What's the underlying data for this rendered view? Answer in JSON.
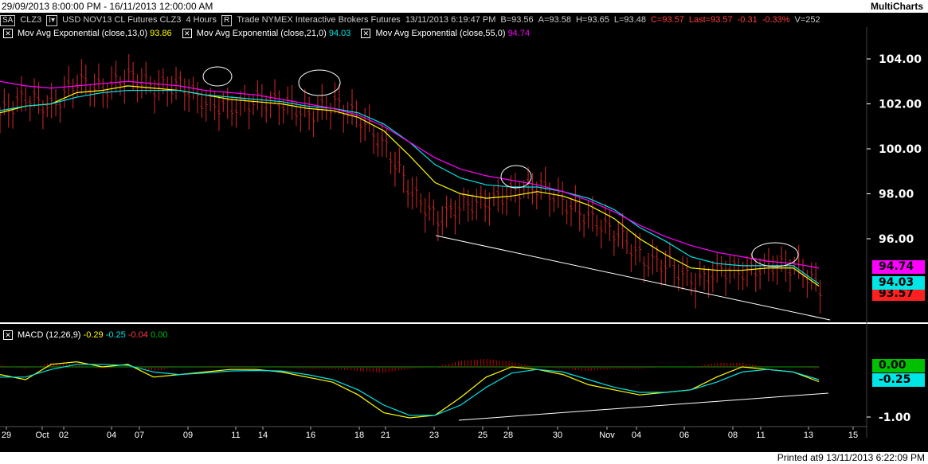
{
  "title": {
    "left": "29/09/2013 8:00:00 PM - 16/11/2013 12:00:00 AM",
    "right": "MultiCharts"
  },
  "info": {
    "mode": "SA",
    "symbol": "CLZ3",
    "desc": "USD NOV13 CL Futures CLZ3",
    "interval": "4 Hours",
    "rbox": "R",
    "source": "Trade  NYMEX  Interactive Brokers  Futures",
    "datetime": "13/11/2013 6:19:47 PM",
    "bid": "B=93.56",
    "ask": "A=93.58",
    "high": "H=93.65",
    "low": "L=93.48",
    "close": "C=93.57",
    "last": "Last=93.57",
    "chg": "-0.31",
    "pct": "-0.33%",
    "vol": "V=252"
  },
  "indicators": [
    {
      "label": "Mov Avg Exponential  (close,13,0)",
      "value": "93.86",
      "color": "#ffff00"
    },
    {
      "label": "Mov Avg Exponential  (close,21,0)",
      "value": "94.03",
      "color": "#00e5e5"
    },
    {
      "label": "Mov Avg Exponential  (close,55,0)",
      "value": "94.74",
      "color": "#ff00ff"
    }
  ],
  "macd_header": {
    "label": "MACD  (12,26,9)",
    "v1": "-0.29",
    "v2": "-0.25",
    "v3": "-0.04",
    "v4": "0.00"
  },
  "badges": {
    "ema55": "94.74",
    "ema21": "94.03",
    "last": "93.57",
    "macd_zero": "0.00",
    "macd_signal": "-0.25"
  },
  "footer": "Printed at9 13/11/2013 6:22:09 PM",
  "chart_data": [
    {
      "type": "line",
      "title": "CLZ3 4 Hours",
      "ylim": [
        93.0,
        105.0
      ],
      "y_ticks": [
        "104.00",
        "102.00",
        "100.00",
        "98.00",
        "96.00"
      ],
      "x_tick_labels": [
        "29",
        "Oct",
        "02",
        "04",
        "07",
        "09",
        "11",
        "14",
        "16",
        "18",
        "21",
        "23",
        "25",
        "28",
        "30",
        "Nov",
        "04",
        "06",
        "08",
        "11",
        "13",
        "15"
      ],
      "grid": false,
      "bars_x": [
        0,
        1.5,
        3,
        4.5,
        6,
        7.5,
        9,
        10.5,
        12,
        13.5,
        15,
        16.5,
        18,
        19.5,
        21,
        22.5,
        24,
        25.5,
        27,
        28.5,
        30,
        31.5,
        33,
        34.5,
        36,
        37.5,
        39,
        40.5,
        42,
        43.5,
        45,
        46.5,
        48
      ],
      "close_approx": [
        101.5,
        102.3,
        101.8,
        103.0,
        102.6,
        103.2,
        102.7,
        102.8,
        102.0,
        101.8,
        102.1,
        102.0,
        101.5,
        102.0,
        101.3,
        100.0,
        98.0,
        96.8,
        97.5,
        97.6,
        98.1,
        98.3,
        97.5,
        96.8,
        96.2,
        95.0,
        94.8,
        94.0,
        94.6,
        94.5,
        94.8,
        94.7,
        93.6
      ],
      "series": [
        {
          "name": "EMA 13",
          "color": "#ffff00",
          "values": [
            101.6,
            101.9,
            102.0,
            102.5,
            102.6,
            102.8,
            102.7,
            102.6,
            102.4,
            102.2,
            102.1,
            102.0,
            101.8,
            101.7,
            101.4,
            100.8,
            99.7,
            98.5,
            98.0,
            97.8,
            97.9,
            98.1,
            97.9,
            97.5,
            96.9,
            96.0,
            95.3,
            94.7,
            94.6,
            94.6,
            94.7,
            94.7,
            93.9
          ]
        },
        {
          "name": "EMA 21",
          "color": "#00e5e5",
          "values": [
            101.7,
            101.9,
            102.0,
            102.3,
            102.5,
            102.6,
            102.6,
            102.6,
            102.4,
            102.3,
            102.2,
            102.1,
            101.9,
            101.8,
            101.6,
            101.1,
            100.3,
            99.3,
            98.7,
            98.4,
            98.3,
            98.3,
            98.1,
            97.8,
            97.3,
            96.5,
            95.9,
            95.2,
            94.9,
            94.8,
            94.8,
            94.8,
            94.0
          ]
        },
        {
          "name": "EMA 55",
          "color": "#ff00ff",
          "values": [
            103.0,
            102.8,
            102.7,
            102.8,
            102.9,
            103.0,
            102.9,
            102.8,
            102.6,
            102.5,
            102.4,
            102.2,
            102.0,
            101.8,
            101.5,
            101.0,
            100.3,
            99.6,
            99.1,
            98.8,
            98.6,
            98.4,
            98.1,
            97.7,
            97.2,
            96.6,
            96.1,
            95.7,
            95.4,
            95.2,
            95.0,
            94.9,
            94.7
          ]
        }
      ]
    },
    {
      "type": "line",
      "title": "MACD (12,26,9)",
      "ylim": [
        -1.1,
        0.2
      ],
      "y_ticks": [
        "0.00",
        "-0.25",
        "-1.00"
      ],
      "series": [
        {
          "name": "MACD",
          "color": "#ffff00",
          "values": [
            -0.15,
            -0.25,
            0.05,
            0.1,
            0.0,
            0.05,
            -0.2,
            -0.15,
            -0.1,
            -0.05,
            -0.05,
            -0.1,
            -0.2,
            -0.3,
            -0.55,
            -0.9,
            -1.0,
            -0.95,
            -0.6,
            -0.2,
            0.0,
            -0.05,
            -0.15,
            -0.35,
            -0.45,
            -0.55,
            -0.5,
            -0.45,
            -0.2,
            0.0,
            -0.05,
            -0.1,
            -0.29
          ]
        },
        {
          "name": "Signal",
          "color": "#00e5e5",
          "values": [
            -0.2,
            -0.2,
            -0.05,
            0.05,
            0.05,
            0.03,
            -0.1,
            -0.15,
            -0.12,
            -0.08,
            -0.07,
            -0.08,
            -0.15,
            -0.25,
            -0.45,
            -0.75,
            -0.95,
            -0.95,
            -0.75,
            -0.4,
            -0.12,
            -0.05,
            -0.1,
            -0.25,
            -0.4,
            -0.5,
            -0.5,
            -0.45,
            -0.3,
            -0.1,
            -0.05,
            -0.1,
            -0.25
          ]
        }
      ]
    }
  ]
}
